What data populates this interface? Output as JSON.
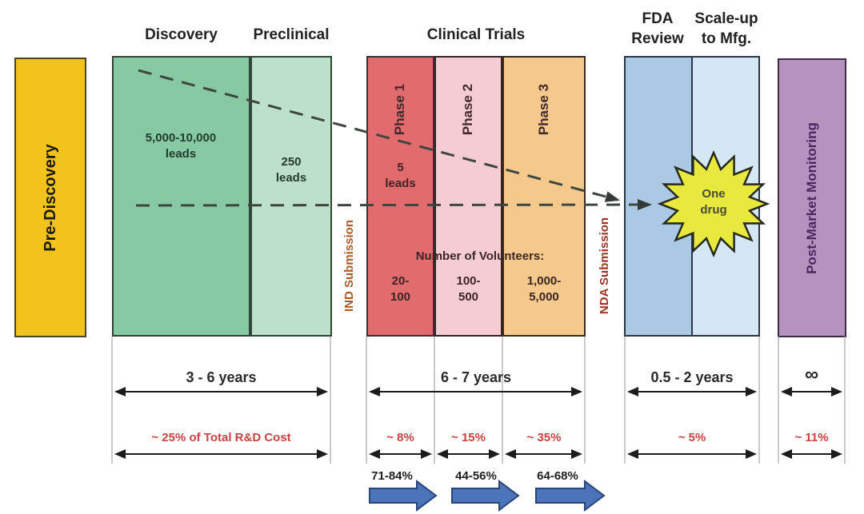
{
  "headers": {
    "discovery": "Discovery",
    "preclinical": "Preclinical",
    "clinical_trials": "Clinical Trials",
    "fda_review": "FDA\nReview",
    "scale_up": "Scale-up\nto Mfg."
  },
  "stages": {
    "pre_discovery": {
      "label": "Pre-Discovery",
      "color": "#f2c31c"
    },
    "discovery": {
      "leads": "5,000-10,000\nleads",
      "color": "#87c9a3"
    },
    "preclinical": {
      "leads": "250\nleads",
      "color": "#bce0c9"
    },
    "phase1": {
      "label": "Phase 1",
      "leads": "5\nleads",
      "volunteers": "20-\n100",
      "color": "#e26b6e"
    },
    "phase2": {
      "label": "Phase 2",
      "volunteers": "100-\n500",
      "color": "#f6ccd4"
    },
    "phase3": {
      "label": "Phase 3",
      "volunteers": "1,000-\n5,000",
      "color": "#f5c98c"
    },
    "fda_review": {
      "color": "#abc8e4"
    },
    "scale_up": {
      "color": "#d5e7f4"
    },
    "post_market": {
      "label": "Post-Market Monitoring",
      "color": "#b494bf"
    }
  },
  "milestones": {
    "ind": "IND Submission",
    "nda": "NDA Submission"
  },
  "outcome": {
    "label": "One\ndrug",
    "starburst_color": "#e7ea3d"
  },
  "volunteers_heading": "Number of Volunteers:",
  "duration": {
    "discovery_preclinical": "3 - 6 years",
    "clinical_trials": "6 - 7 years",
    "fda_scaleup": "0.5 - 2 years",
    "post_market": "∞"
  },
  "cost_share": {
    "discovery_preclinical": "~ 25% of Total R&D Cost",
    "phase1": "~ 8%",
    "phase2": "~ 15%",
    "phase3": "~ 35%",
    "fda_scaleup": "~ 5%",
    "post_market": "~ 11%"
  },
  "success_rates": {
    "phase1": "71-84%",
    "phase2": "44-56%",
    "phase3": "64-68%"
  },
  "colors": {
    "cost_text": "#c94242",
    "milestone_ind": "#ad5a28",
    "milestone_nda": "#a03226",
    "dashed_line": "#3d473f",
    "success_arrow": "#4c74ba",
    "dimension_line": "#1c1c1c"
  }
}
